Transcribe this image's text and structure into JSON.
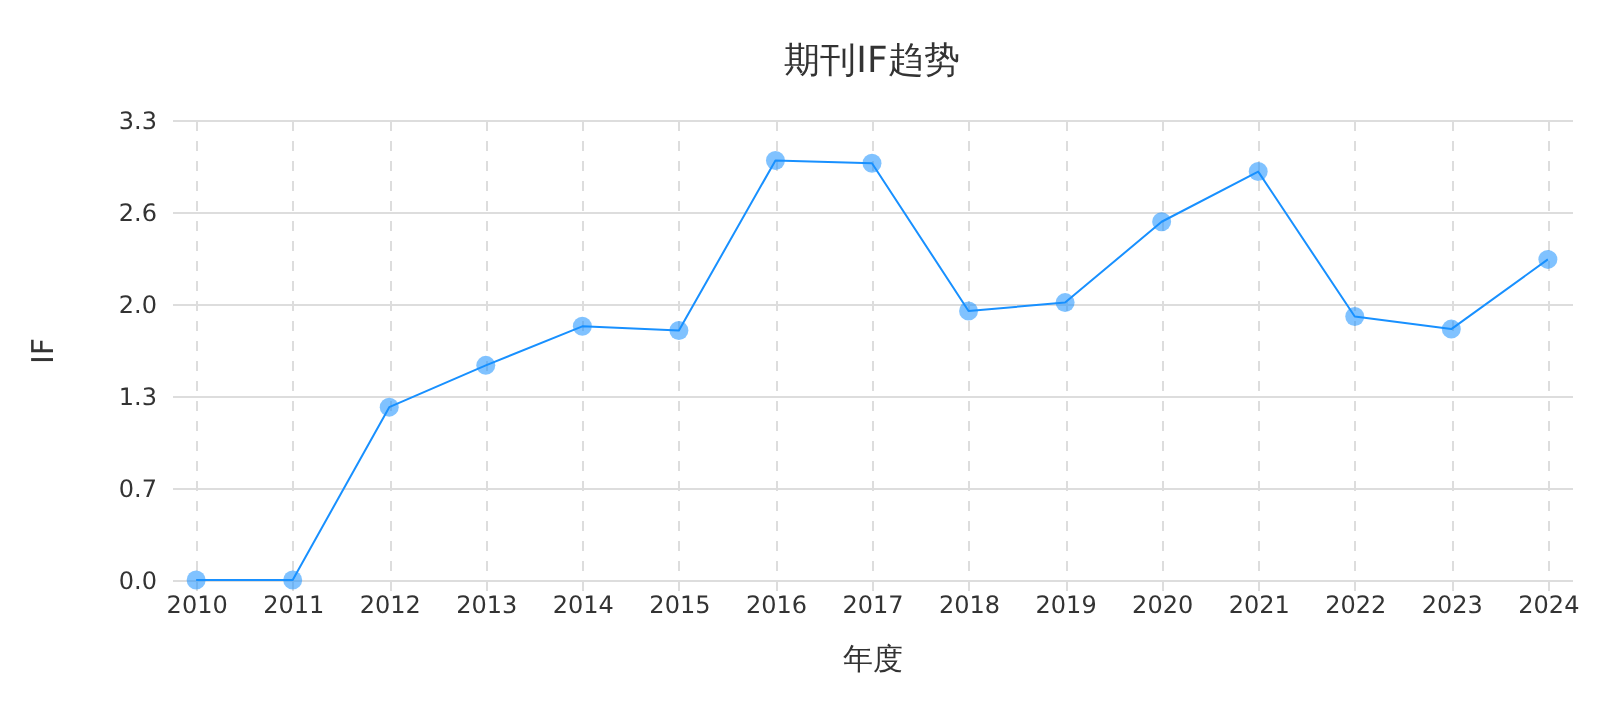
{
  "chart_data": {
    "type": "line",
    "title": "期刊IF趋势",
    "xlabel": "年度",
    "ylabel": "IF",
    "categories": [
      "2010",
      "2011",
      "2012",
      "2013",
      "2014",
      "2015",
      "2016",
      "2017",
      "2018",
      "2019",
      "2020",
      "2021",
      "2022",
      "2023",
      "2024"
    ],
    "series": [
      {
        "color": "#1890ff",
        "values": [
          0,
          0,
          1.24,
          1.54,
          1.82,
          1.79,
          3.01,
          2.99,
          1.93,
          1.99,
          2.57,
          2.93,
          1.89,
          1.8,
          2.3
        ]
      }
    ],
    "ylim": [
      0,
      3.3
    ],
    "yticks": [
      {
        "value": 0,
        "label": "0.0"
      },
      {
        "value": 0.66,
        "label": "0.7"
      },
      {
        "value": 1.32,
        "label": "1.3"
      },
      {
        "value": 1.98,
        "label": "2.0"
      },
      {
        "value": 2.64,
        "label": "2.6"
      },
      3.3
    ],
    "grid": true,
    "marker": "circle",
    "line_style": "solid"
  }
}
